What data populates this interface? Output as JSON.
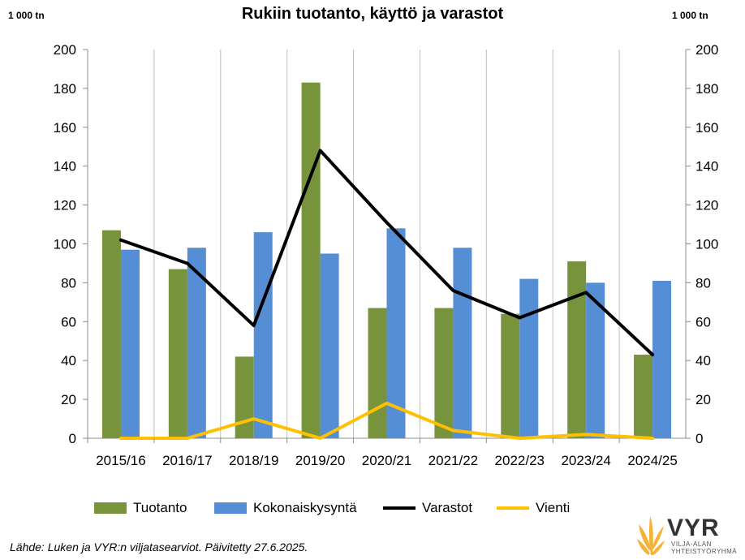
{
  "chart_data": {
    "type": "bar",
    "title": "Rukiin tuotanto, käyttö ja varastot",
    "ylabel_left": "1 000 tn",
    "ylabel_right": "1 000 tn",
    "ylim": [
      0,
      200
    ],
    "yticks": [
      "0",
      "20",
      "40",
      "60",
      "80",
      "100",
      "120",
      "140",
      "160",
      "180",
      "200"
    ],
    "categories": [
      "2015/16",
      "2016/17",
      "2018/19",
      "2019/20",
      "2020/21",
      "2021/22",
      "2022/23",
      "2023/24",
      "2024/25"
    ],
    "series": [
      {
        "name": "Tuotanto",
        "type": "bar",
        "color": "#77933c",
        "values": [
          107,
          87,
          42,
          183,
          67,
          67,
          64,
          91,
          43
        ]
      },
      {
        "name": "Kokonaiskysyntä",
        "type": "bar",
        "color": "#558ed5",
        "values": [
          97,
          98,
          106,
          95,
          108,
          98,
          82,
          80,
          81
        ]
      },
      {
        "name": "Varastot",
        "type": "line",
        "color": "#000000",
        "values": [
          102,
          90,
          58,
          148,
          111,
          76,
          62,
          75,
          43
        ]
      },
      {
        "name": "Vienti",
        "type": "line",
        "color": "#ffc000",
        "values": [
          0,
          0,
          10,
          0,
          18,
          4,
          0,
          2,
          0
        ]
      }
    ],
    "legend_position": "bottom",
    "grid": "vertical"
  },
  "source_note": "Lähde: Luken ja VYR:n viljatasearviot. Päivitetty 27.6.2025.",
  "logo": {
    "name": "VYR",
    "sub_line1": "VILJA-ALAN",
    "sub_line2": "YHTEISTYÖRYHMÄ",
    "color": "#f5b335"
  }
}
